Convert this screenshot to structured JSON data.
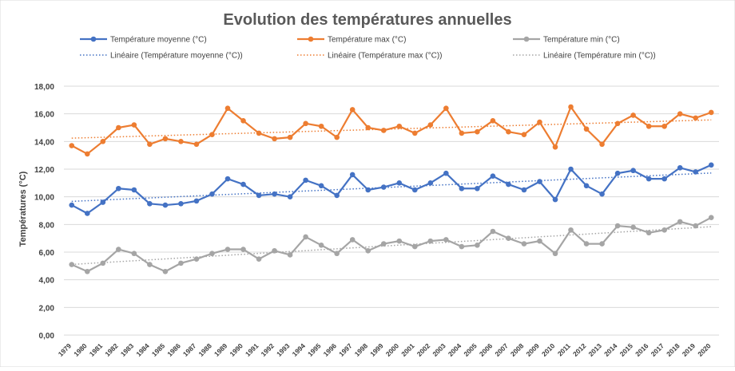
{
  "chart_data": {
    "type": "line",
    "title": "Evolution des températures annuelles",
    "xlabel": "",
    "ylabel": "Températures (°C)",
    "ylim": [
      0,
      18
    ],
    "ytick_step": 2,
    "ytick_labels": [
      "0,00",
      "2,00",
      "4,00",
      "6,00",
      "8,00",
      "10,00",
      "12,00",
      "14,00",
      "16,00",
      "18,00"
    ],
    "grid": true,
    "legend_position": "top",
    "x": [
      1979,
      1980,
      1981,
      1982,
      1983,
      1984,
      1985,
      1986,
      1987,
      1988,
      1989,
      1990,
      1991,
      1992,
      1993,
      1994,
      1995,
      1996,
      1997,
      1998,
      1999,
      2000,
      2001,
      2002,
      2003,
      2004,
      2005,
      2006,
      2007,
      2008,
      2009,
      2010,
      2011,
      2012,
      2013,
      2014,
      2015,
      2016,
      2017,
      2018,
      2019,
      2020
    ],
    "series": [
      {
        "name": "Température moyenne (°C)",
        "color": "#4472C4",
        "trend_name": "Linéaire (Température moyenne (°C))",
        "values": [
          9.4,
          8.8,
          9.6,
          10.6,
          10.5,
          9.5,
          9.4,
          9.5,
          9.7,
          10.2,
          11.3,
          10.9,
          10.1,
          10.2,
          10.0,
          11.2,
          10.8,
          10.1,
          11.6,
          10.5,
          10.7,
          11.0,
          10.5,
          11.0,
          11.7,
          10.6,
          10.6,
          11.5,
          10.9,
          10.5,
          11.1,
          9.8,
          12.0,
          10.8,
          10.2,
          11.7,
          11.9,
          11.3,
          11.3,
          12.1,
          11.8,
          12.3
        ]
      },
      {
        "name": "Température max (°C)",
        "color": "#ED7D31",
        "trend_name": "Linéaire (Température max (°C))",
        "values": [
          13.7,
          13.1,
          14.0,
          15.0,
          15.2,
          13.8,
          14.2,
          14.0,
          13.8,
          14.5,
          16.4,
          15.5,
          14.6,
          14.2,
          14.3,
          15.3,
          15.1,
          14.3,
          16.3,
          15.0,
          14.8,
          15.1,
          14.6,
          15.2,
          16.4,
          14.6,
          14.7,
          15.5,
          14.7,
          14.5,
          15.4,
          13.6,
          16.5,
          14.9,
          13.8,
          15.3,
          15.9,
          15.1,
          15.1,
          16.0,
          15.7,
          16.1
        ]
      },
      {
        "name": "Température min (°C)",
        "color": "#A5A5A5",
        "trend_name": "Linéaire (Température min (°C))",
        "values": [
          5.1,
          4.6,
          5.2,
          6.2,
          5.9,
          5.1,
          4.6,
          5.2,
          5.5,
          5.9,
          6.2,
          6.2,
          5.5,
          6.1,
          5.8,
          7.1,
          6.5,
          5.9,
          6.9,
          6.1,
          6.6,
          6.8,
          6.4,
          6.8,
          6.9,
          6.4,
          6.5,
          7.5,
          7.0,
          6.6,
          6.8,
          5.9,
          7.6,
          6.6,
          6.6,
          7.9,
          7.8,
          7.4,
          7.6,
          8.2,
          7.9,
          8.5
        ]
      }
    ]
  }
}
